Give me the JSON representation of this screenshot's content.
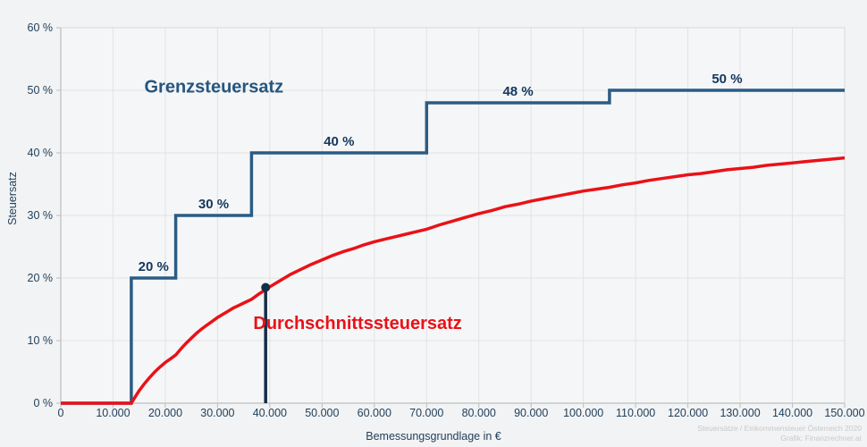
{
  "page": {
    "background": "#f2f3f4"
  },
  "chart_data": {
    "type": "line",
    "title": "",
    "xlabel": "Bemessungsgrundlage in €",
    "ylabel": "Steuersatz",
    "xlim": [
      0,
      150000
    ],
    "ylim": [
      0,
      60
    ],
    "grid": true,
    "legend_position": "none",
    "colors": {
      "plot_bg": "#f5f6f7",
      "grid": "#e2e3e5",
      "border": "#d8dadc",
      "axis": "#c5c7c9",
      "tick": "#b9bbbd",
      "tick_text": "#22405c",
      "step_label_text": "#14375d"
    },
    "x_ticks": [
      {
        "v": 0,
        "label": "0"
      },
      {
        "v": 10000,
        "label": "10.000"
      },
      {
        "v": 20000,
        "label": "20.000"
      },
      {
        "v": 30000,
        "label": "30.000"
      },
      {
        "v": 40000,
        "label": "40.000"
      },
      {
        "v": 50000,
        "label": "50.000"
      },
      {
        "v": 60000,
        "label": "60.000"
      },
      {
        "v": 70000,
        "label": "70.000"
      },
      {
        "v": 80000,
        "label": "80.000"
      },
      {
        "v": 90000,
        "label": "90.000"
      },
      {
        "v": 100000,
        "label": "100.000"
      },
      {
        "v": 110000,
        "label": "110.000"
      },
      {
        "v": 120000,
        "label": "120.000"
      },
      {
        "v": 130000,
        "label": "130.000"
      },
      {
        "v": 140000,
        "label": "140.000"
      },
      {
        "v": 150000,
        "label": "150.000"
      }
    ],
    "y_ticks": [
      {
        "v": 0,
        "label": "0 %"
      },
      {
        "v": 10,
        "label": "10 %"
      },
      {
        "v": 20,
        "label": "20 %"
      },
      {
        "v": 30,
        "label": "30 %"
      },
      {
        "v": 40,
        "label": "40 %"
      },
      {
        "v": 50,
        "label": "50 %"
      },
      {
        "v": 60,
        "label": "60 %"
      }
    ],
    "series": [
      {
        "name": "Grenzsteuersatz",
        "type": "step",
        "color": "#2a5c85",
        "width": 3.5,
        "points": [
          [
            0,
            0
          ],
          [
            13500,
            0
          ],
          [
            13500,
            20
          ],
          [
            22000,
            20
          ],
          [
            22000,
            30
          ],
          [
            36500,
            30
          ],
          [
            36500,
            40
          ],
          [
            70000,
            40
          ],
          [
            70000,
            48
          ],
          [
            105000,
            48
          ],
          [
            105000,
            50
          ],
          [
            150000,
            50
          ]
        ],
        "segment_labels": [
          {
            "text": "20 %",
            "x": 17750,
            "y": 20
          },
          {
            "text": "30 %",
            "x": 29250,
            "y": 30
          },
          {
            "text": "40 %",
            "x": 53250,
            "y": 40
          },
          {
            "text": "48 %",
            "x": 87500,
            "y": 48
          },
          {
            "text": "50 %",
            "x": 127500,
            "y": 50
          }
        ],
        "annotation": {
          "text": "Grenzsteuersatz",
          "x": 29300,
          "y": 50.4
        }
      },
      {
        "name": "Durchschnittssteuersatz",
        "type": "line",
        "color": "#ea1117",
        "width": 3.5,
        "points": [
          [
            0,
            0
          ],
          [
            13500,
            0
          ],
          [
            14000,
            0.7
          ],
          [
            15000,
            2.0
          ],
          [
            16000,
            3.1
          ],
          [
            17000,
            4.1
          ],
          [
            18000,
            5.0
          ],
          [
            19000,
            5.8
          ],
          [
            20000,
            6.5
          ],
          [
            21000,
            7.1
          ],
          [
            22000,
            7.7
          ],
          [
            23000,
            8.7
          ],
          [
            24000,
            9.6
          ],
          [
            25000,
            10.4
          ],
          [
            26000,
            11.2
          ],
          [
            27000,
            11.9
          ],
          [
            28000,
            12.5
          ],
          [
            29000,
            13.1
          ],
          [
            30000,
            13.7
          ],
          [
            31000,
            14.2
          ],
          [
            32000,
            14.7
          ],
          [
            33000,
            15.2
          ],
          [
            34000,
            15.6
          ],
          [
            35000,
            16.0
          ],
          [
            36500,
            16.6
          ],
          [
            38000,
            17.5
          ],
          [
            40000,
            18.6
          ],
          [
            42000,
            19.6
          ],
          [
            44000,
            20.6
          ],
          [
            46000,
            21.4
          ],
          [
            48000,
            22.2
          ],
          [
            50000,
            22.9
          ],
          [
            52000,
            23.6
          ],
          [
            54000,
            24.2
          ],
          [
            56000,
            24.7
          ],
          [
            58000,
            25.3
          ],
          [
            60000,
            25.8
          ],
          [
            62000,
            26.2
          ],
          [
            64000,
            26.6
          ],
          [
            66000,
            27.0
          ],
          [
            68000,
            27.4
          ],
          [
            70000,
            27.8
          ],
          [
            72500,
            28.5
          ],
          [
            75000,
            29.1
          ],
          [
            77500,
            29.7
          ],
          [
            80000,
            30.3
          ],
          [
            82500,
            30.8
          ],
          [
            85000,
            31.4
          ],
          [
            87500,
            31.8
          ],
          [
            90000,
            32.3
          ],
          [
            92500,
            32.7
          ],
          [
            95000,
            33.1
          ],
          [
            97500,
            33.5
          ],
          [
            100000,
            33.9
          ],
          [
            102500,
            34.2
          ],
          [
            105000,
            34.5
          ],
          [
            107500,
            34.9
          ],
          [
            110000,
            35.2
          ],
          [
            112500,
            35.6
          ],
          [
            115000,
            35.9
          ],
          [
            117500,
            36.2
          ],
          [
            120000,
            36.5
          ],
          [
            122500,
            36.7
          ],
          [
            125000,
            37.0
          ],
          [
            127500,
            37.3
          ],
          [
            130000,
            37.5
          ],
          [
            132500,
            37.7
          ],
          [
            135000,
            38.0
          ],
          [
            137500,
            38.2
          ],
          [
            140000,
            38.4
          ],
          [
            142500,
            38.6
          ],
          [
            145000,
            38.8
          ],
          [
            147500,
            39.0
          ],
          [
            150000,
            39.2
          ]
        ],
        "annotation": {
          "text": "Durchschnittssteuersatz",
          "x": 56800,
          "y": 12.6
        }
      }
    ],
    "marker": {
      "x": 39200,
      "y": 18.5,
      "color": "#132e48",
      "radius": 5,
      "line_width": 3.5
    }
  },
  "footer": {
    "attribution_line1": "Steuersätze / Einkommensteuer Österreich 2020",
    "attribution_line2": "Grafik: Finanzrechner.at"
  }
}
